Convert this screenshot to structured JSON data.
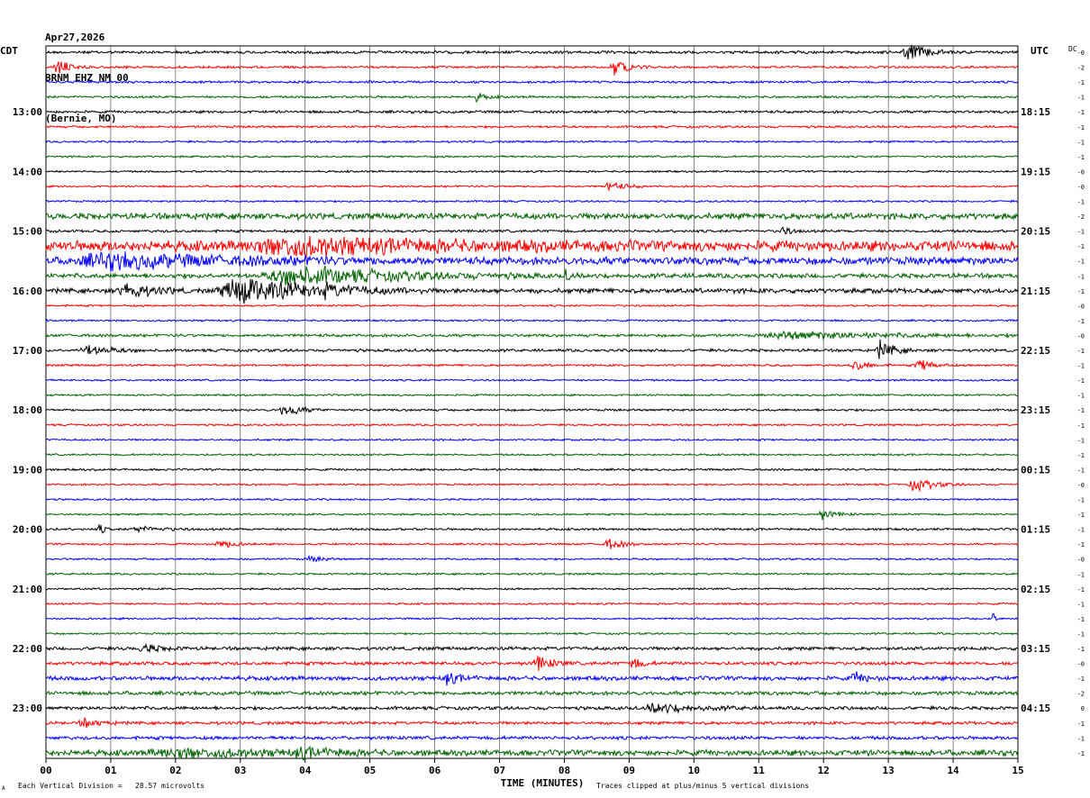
{
  "header": {
    "date": "Apr27,2026",
    "station": "BRNM EHZ NM 00",
    "location": "(Bernie, MO)"
  },
  "left_label": "CDT",
  "right_label": "UTC",
  "dc_label": "DC",
  "footer": {
    "scale": "Each Vertical Division =   28.57 microvolts",
    "clip": "Traces clipped at plus/minus 5 vertical divisions",
    "corner": "A"
  },
  "colors": {
    "trace_cycle": [
      "#000000",
      "#ff0000",
      "#0000ff",
      "#006400"
    ],
    "grid": "#000000"
  },
  "chart_data": {
    "type": "line",
    "subtype": "helicorder",
    "xlabel": "TIME (MINUTES)",
    "x_ticks": [
      "00",
      "01",
      "02",
      "03",
      "04",
      "05",
      "06",
      "07",
      "08",
      "09",
      "10",
      "11",
      "12",
      "13",
      "14",
      "15"
    ],
    "xlim": [
      0,
      15
    ],
    "left_hour_labels": [
      {
        "row": 4,
        "label": "13:00"
      },
      {
        "row": 8,
        "label": "14:00"
      },
      {
        "row": 12,
        "label": "15:00"
      },
      {
        "row": 16,
        "label": "16:00"
      },
      {
        "row": 20,
        "label": "17:00"
      },
      {
        "row": 24,
        "label": "18:00"
      },
      {
        "row": 28,
        "label": "19:00"
      },
      {
        "row": 32,
        "label": "20:00"
      },
      {
        "row": 36,
        "label": "21:00"
      },
      {
        "row": 40,
        "label": "22:00"
      },
      {
        "row": 44,
        "label": "23:00"
      }
    ],
    "right_hour_labels": [
      {
        "row": 4,
        "label": "18:15"
      },
      {
        "row": 8,
        "label": "19:15"
      },
      {
        "row": 12,
        "label": "20:15"
      },
      {
        "row": 16,
        "label": "21:15"
      },
      {
        "row": 20,
        "label": "22:15"
      },
      {
        "row": 24,
        "label": "23:15"
      },
      {
        "row": 28,
        "label": "00:15"
      },
      {
        "row": 32,
        "label": "01:15"
      },
      {
        "row": 36,
        "label": "02:15"
      },
      {
        "row": 40,
        "label": "03:15"
      },
      {
        "row": 44,
        "label": "04:15"
      }
    ],
    "dc_offsets": [
      "-0",
      "-2",
      "-1",
      "-1",
      "-1",
      "-1",
      "-1",
      "-1",
      "-0",
      "-0",
      "-1",
      "-2",
      "-1",
      "-1",
      "-1",
      "-1",
      "-1",
      "-0",
      "-1",
      "-0",
      "-1",
      "-1",
      "-1",
      "-1",
      "-1",
      "-1",
      "-1",
      "-1",
      "-1",
      "-0",
      "-1",
      "-1",
      "-1",
      "-1",
      "-0",
      "-1",
      "-1",
      "-1",
      "-1",
      "-1",
      "-1",
      "-0",
      "-1",
      "-2",
      "0",
      "-1",
      "-1",
      "-1"
    ],
    "trace_count": 48,
    "noise_level": [
      1.5,
      1.2,
      1.2,
      1.2,
      1.4,
      1.2,
      1.0,
      1.0,
      1.0,
      1.0,
      1.0,
      3.2,
      1.4,
      5.5,
      4.0,
      2.5,
      2.5,
      1.0,
      1.0,
      1.5,
      1.5,
      1.1,
      1.0,
      1.0,
      1.2,
      1.0,
      1.0,
      1.0,
      1.1,
      1.0,
      1.0,
      1.0,
      1.2,
      1.0,
      1.0,
      1.0,
      1.0,
      1.0,
      1.0,
      1.0,
      1.8,
      1.8,
      2.2,
      2.0,
      1.8,
      1.6,
      1.8,
      3.0
    ],
    "events": [
      {
        "row": 0,
        "minute": 13.2,
        "amp": 9,
        "dur": 0.4
      },
      {
        "row": 1,
        "minute": 0.1,
        "amp": 7,
        "dur": 0.3
      },
      {
        "row": 1,
        "minute": 8.7,
        "amp": 8,
        "dur": 0.3
      },
      {
        "row": 3,
        "minute": 6.6,
        "amp": 4,
        "dur": 0.2
      },
      {
        "row": 9,
        "minute": 8.6,
        "amp": 6,
        "dur": 0.3
      },
      {
        "row": 12,
        "minute": 11.3,
        "amp": 5,
        "dur": 0.2
      },
      {
        "row": 13,
        "minute": 3.0,
        "amp": 8,
        "dur": 2.8
      },
      {
        "row": 14,
        "minute": 0.3,
        "amp": 7,
        "dur": 2.5
      },
      {
        "row": 15,
        "minute": 3.3,
        "amp": 10,
        "dur": 2.0
      },
      {
        "row": 15,
        "minute": 8.0,
        "amp": 6,
        "dur": 0.1
      },
      {
        "row": 16,
        "minute": 1.1,
        "amp": 9,
        "dur": 0.5
      },
      {
        "row": 16,
        "minute": 2.6,
        "amp": 14,
        "dur": 1.5
      },
      {
        "row": 16,
        "minute": 4.1,
        "amp": 7,
        "dur": 0.8
      },
      {
        "row": 19,
        "minute": 11.0,
        "amp": 4,
        "dur": 2.0
      },
      {
        "row": 20,
        "minute": 0.5,
        "amp": 5,
        "dur": 0.5
      },
      {
        "row": 20,
        "minute": 12.8,
        "amp": 10,
        "dur": 0.3
      },
      {
        "row": 21,
        "minute": 12.4,
        "amp": 6,
        "dur": 0.3
      },
      {
        "row": 21,
        "minute": 13.4,
        "amp": 7,
        "dur": 0.3
      },
      {
        "row": 24,
        "minute": 3.6,
        "amp": 8,
        "dur": 0.3
      },
      {
        "row": 29,
        "minute": 13.3,
        "amp": 7,
        "dur": 0.4
      },
      {
        "row": 31,
        "minute": 11.9,
        "amp": 5,
        "dur": 0.3
      },
      {
        "row": 32,
        "minute": 0.8,
        "amp": 6,
        "dur": 0.1
      },
      {
        "row": 32,
        "minute": 1.3,
        "amp": 3,
        "dur": 0.5
      },
      {
        "row": 33,
        "minute": 2.6,
        "amp": 5,
        "dur": 0.3
      },
      {
        "row": 33,
        "minute": 8.6,
        "amp": 6,
        "dur": 0.3
      },
      {
        "row": 34,
        "minute": 4.0,
        "amp": 3,
        "dur": 0.3
      },
      {
        "row": 38,
        "minute": 14.6,
        "amp": 10,
        "dur": 0.05
      },
      {
        "row": 40,
        "minute": 1.4,
        "amp": 4,
        "dur": 0.4
      },
      {
        "row": 41,
        "minute": 7.5,
        "amp": 8,
        "dur": 0.3
      },
      {
        "row": 41,
        "minute": 9.0,
        "amp": 6,
        "dur": 0.2
      },
      {
        "row": 42,
        "minute": 6.1,
        "amp": 6,
        "dur": 0.3
      },
      {
        "row": 42,
        "minute": 12.4,
        "amp": 5,
        "dur": 0.3
      },
      {
        "row": 44,
        "minute": 9.2,
        "amp": 5,
        "dur": 0.8
      },
      {
        "row": 45,
        "minute": 0.5,
        "amp": 5,
        "dur": 0.3
      },
      {
        "row": 47,
        "minute": 1.5,
        "amp": 4,
        "dur": 2.0
      },
      {
        "row": 47,
        "minute": 3.7,
        "amp": 5,
        "dur": 0.8
      }
    ]
  }
}
